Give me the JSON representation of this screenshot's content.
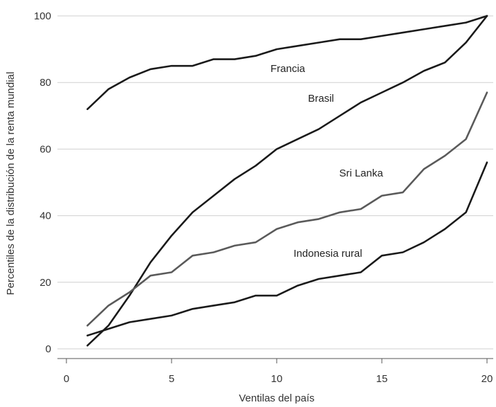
{
  "chart_data": {
    "type": "line",
    "title": "",
    "xlabel": "Ventilas del país",
    "ylabel": "Percentiles de la distribución de la renta mundial",
    "xlim": [
      0,
      20
    ],
    "ylim": [
      0,
      100
    ],
    "xticks": [
      "0",
      "5",
      "10",
      "15",
      "20"
    ],
    "yticks": [
      "0",
      "20",
      "40",
      "60",
      "80",
      "100"
    ],
    "grid": "horizontal",
    "legend": "none",
    "series": [
      {
        "name": "Francia",
        "color": "#1a1a1a",
        "x": [
          1,
          2,
          3,
          4,
          5,
          6,
          7,
          8,
          9,
          10,
          11,
          12,
          13,
          14,
          15,
          16,
          17,
          18,
          19,
          20
        ],
        "values": [
          72,
          78,
          81.5,
          84,
          85,
          85,
          87,
          87,
          88,
          90,
          91,
          92,
          93,
          93,
          94,
          95,
          96,
          97,
          98,
          100
        ]
      },
      {
        "name": "Brasil",
        "color": "#1a1a1a",
        "x": [
          1,
          2,
          3,
          4,
          5,
          6,
          7,
          8,
          9,
          10,
          11,
          12,
          13,
          14,
          15,
          16,
          17,
          18,
          19,
          20
        ],
        "values": [
          1,
          7,
          16,
          26,
          34,
          41,
          46,
          51,
          55,
          60,
          63,
          66,
          70,
          74,
          77,
          80,
          83.5,
          86,
          92,
          100
        ]
      },
      {
        "name": "Sri Lanka",
        "color": "#5a5a5a",
        "x": [
          1,
          2,
          3,
          4,
          5,
          6,
          7,
          8,
          9,
          10,
          11,
          12,
          13,
          14,
          15,
          16,
          17,
          18,
          19,
          20
        ],
        "values": [
          7,
          13,
          17,
          22,
          23,
          28,
          29,
          31,
          32,
          36,
          38,
          39,
          41,
          42,
          46,
          47,
          54,
          58,
          63,
          77
        ]
      },
      {
        "name": "Indonesia rural",
        "color": "#1a1a1a",
        "x": [
          1,
          2,
          3,
          4,
          5,
          6,
          7,
          8,
          9,
          10,
          11,
          12,
          13,
          14,
          15,
          16,
          17,
          18,
          19,
          20
        ],
        "values": [
          4,
          6,
          8,
          9,
          10,
          12,
          13,
          14,
          16,
          16,
          19,
          21,
          22,
          23,
          28,
          29,
          32,
          36,
          41,
          56
        ]
      }
    ]
  }
}
